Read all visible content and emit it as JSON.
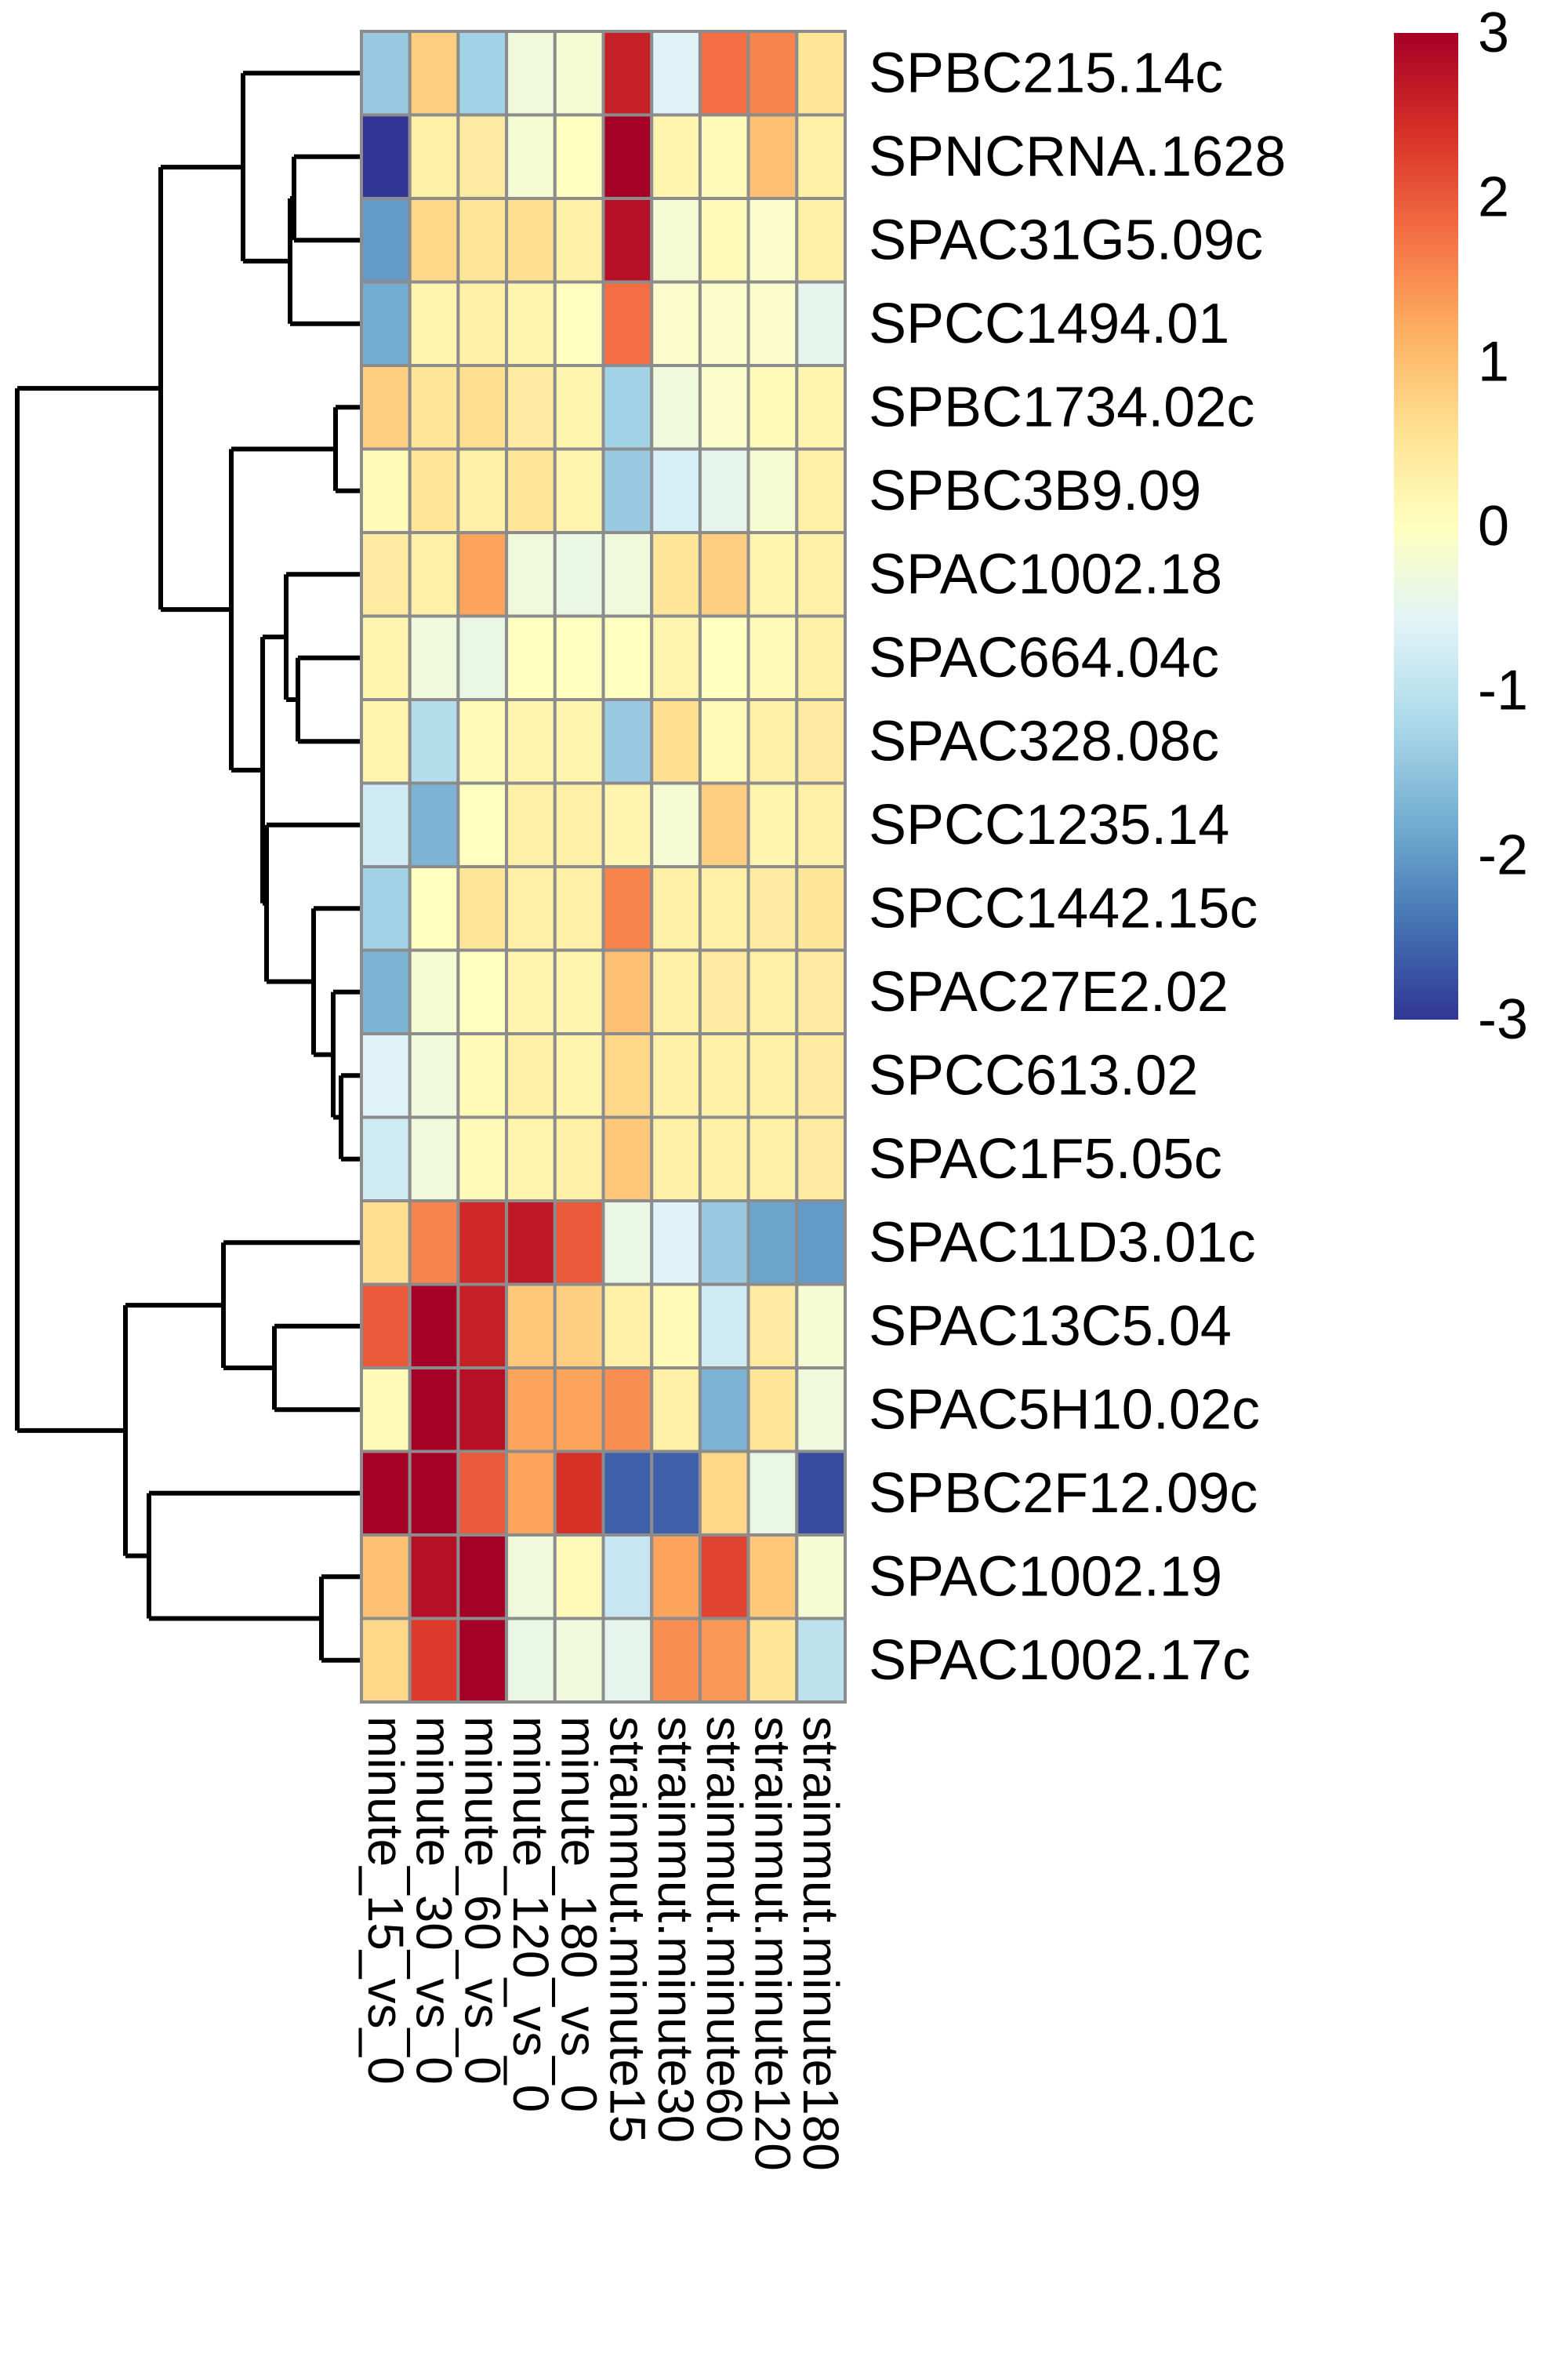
{
  "chart_data": {
    "type": "heatmap",
    "columns": [
      "minute_15_vs_0",
      "minute_30_vs_0",
      "minute_60_vs_0",
      "minute_120_vs_0",
      "minute_180_vs_0",
      "strainmut.minute15",
      "strainmut.minute30",
      "strainmut.minute60",
      "strainmut.minute120",
      "strainmut.minute180"
    ],
    "rows": [
      "SPBC215.14c",
      "SPNCRNA.1628",
      "SPAC31G5.09c",
      "SPCC1494.01",
      "SPBC1734.02c",
      "SPBC3B9.09",
      "SPAC1002.18",
      "SPAC664.04c",
      "SPAC328.08c",
      "SPCC1235.14",
      "SPCC1442.15c",
      "SPAC27E2.02",
      "SPCC613.02",
      "SPAC1F5.05c",
      "SPAC11D3.01c",
      "SPAC13C5.04",
      "SPAC5H10.02c",
      "SPBC2F12.09c",
      "SPAC1002.19",
      "SPAC1002.17c"
    ],
    "values": [
      [
        -1.4,
        0.8,
        -1.3,
        -0.3,
        -0.2,
        2.6,
        -0.6,
        1.8,
        1.6,
        0.5
      ],
      [
        -3.0,
        0.3,
        0.4,
        -0.2,
        0.0,
        3.0,
        0.2,
        0.1,
        1.0,
        0.3
      ],
      [
        -2.0,
        0.7,
        0.5,
        0.6,
        0.3,
        2.8,
        -0.2,
        0.1,
        -0.1,
        0.3
      ],
      [
        -1.8,
        0.2,
        0.3,
        0.2,
        0.0,
        1.8,
        -0.1,
        -0.1,
        -0.1,
        -0.5
      ],
      [
        0.8,
        0.5,
        0.6,
        0.4,
        0.2,
        -1.3,
        -0.3,
        -0.1,
        0.1,
        0.2
      ],
      [
        0.1,
        0.5,
        0.3,
        0.5,
        0.2,
        -1.4,
        -0.7,
        -0.5,
        -0.2,
        0.3
      ],
      [
        0.4,
        0.3,
        1.3,
        -0.3,
        -0.4,
        -0.3,
        0.5,
        0.8,
        0.2,
        0.3
      ],
      [
        0.2,
        -0.3,
        -0.4,
        0.0,
        0.0,
        0.0,
        0.2,
        0.0,
        0.1,
        0.3
      ],
      [
        0.2,
        -1.1,
        0.1,
        0.2,
        0.2,
        -1.4,
        0.6,
        0.1,
        0.3,
        0.4
      ],
      [
        -0.8,
        -1.7,
        0.0,
        0.3,
        0.3,
        0.2,
        -0.2,
        0.8,
        0.2,
        0.3
      ],
      [
        -1.3,
        0.0,
        0.5,
        0.3,
        0.3,
        1.6,
        0.3,
        0.3,
        0.4,
        0.5
      ],
      [
        -1.7,
        -0.2,
        0.0,
        0.2,
        0.2,
        1.0,
        0.3,
        0.4,
        0.3,
        0.4
      ],
      [
        -0.6,
        -0.3,
        0.1,
        0.3,
        0.2,
        0.7,
        0.3,
        0.3,
        0.3,
        0.4
      ],
      [
        -0.8,
        -0.3,
        0.1,
        0.2,
        0.3,
        0.9,
        0.3,
        0.3,
        0.3,
        0.4
      ],
      [
        0.6,
        1.6,
        2.5,
        2.7,
        2.0,
        -0.4,
        -0.6,
        -1.4,
        -1.9,
        -2.0
      ],
      [
        2.0,
        3.0,
        2.6,
        0.9,
        0.8,
        0.3,
        0.1,
        -0.8,
        0.4,
        -0.2
      ],
      [
        0.1,
        3.0,
        2.8,
        1.3,
        1.3,
        1.5,
        0.3,
        -1.7,
        0.5,
        -0.3
      ],
      [
        3.0,
        3.0,
        2.0,
        1.3,
        2.4,
        -2.6,
        -2.6,
        0.7,
        -0.4,
        -2.8
      ],
      [
        1.0,
        2.8,
        3.0,
        -0.3,
        0.1,
        -0.9,
        1.3,
        2.2,
        0.9,
        -0.2
      ],
      [
        0.7,
        2.3,
        3.0,
        -0.4,
        -0.3,
        -0.5,
        1.5,
        1.4,
        0.5,
        -1.0
      ]
    ],
    "zlim": [
      -3,
      3
    ],
    "legend_ticks": [
      3,
      2,
      1,
      0,
      -1,
      -2,
      -3
    ],
    "legend_placement": "top-right",
    "palette": [
      "#313695",
      "#4575b4",
      "#74add1",
      "#abd9e9",
      "#e0f3f8",
      "#ffffbf",
      "#fee090",
      "#fdae61",
      "#f46d43",
      "#d73027",
      "#a50026"
    ],
    "grid_color": "#8c8c8c",
    "dendrogram": "rows"
  }
}
